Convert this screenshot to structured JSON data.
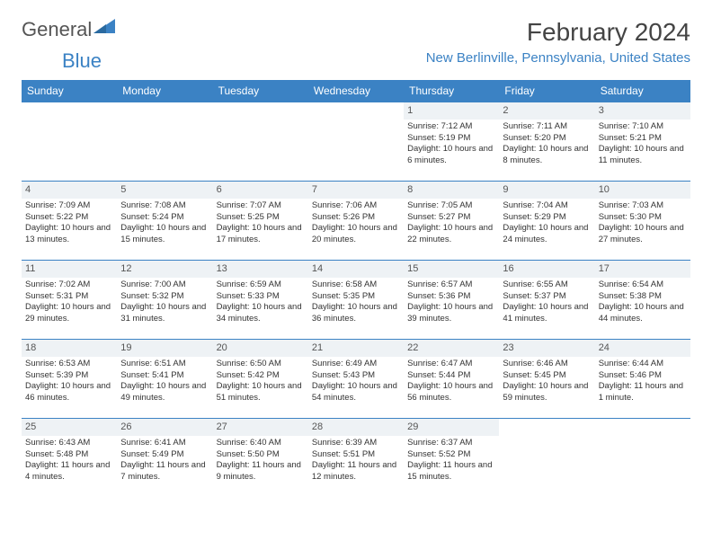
{
  "logo": {
    "text_a": "General",
    "text_b": "Blue"
  },
  "title": "February 2024",
  "location": "New Berlinville, Pennsylvania, United States",
  "colors": {
    "header_bg": "#3b82c4",
    "header_fg": "#ffffff",
    "daynum_bg": "#eef2f5",
    "border": "#3b82c4"
  },
  "weekdays": [
    "Sunday",
    "Monday",
    "Tuesday",
    "Wednesday",
    "Thursday",
    "Friday",
    "Saturday"
  ],
  "weeks": [
    [
      null,
      null,
      null,
      null,
      {
        "n": "1",
        "sr": "7:12 AM",
        "ss": "5:19 PM",
        "dl": "10 hours and 6 minutes."
      },
      {
        "n": "2",
        "sr": "7:11 AM",
        "ss": "5:20 PM",
        "dl": "10 hours and 8 minutes."
      },
      {
        "n": "3",
        "sr": "7:10 AM",
        "ss": "5:21 PM",
        "dl": "10 hours and 11 minutes."
      }
    ],
    [
      {
        "n": "4",
        "sr": "7:09 AM",
        "ss": "5:22 PM",
        "dl": "10 hours and 13 minutes."
      },
      {
        "n": "5",
        "sr": "7:08 AM",
        "ss": "5:24 PM",
        "dl": "10 hours and 15 minutes."
      },
      {
        "n": "6",
        "sr": "7:07 AM",
        "ss": "5:25 PM",
        "dl": "10 hours and 17 minutes."
      },
      {
        "n": "7",
        "sr": "7:06 AM",
        "ss": "5:26 PM",
        "dl": "10 hours and 20 minutes."
      },
      {
        "n": "8",
        "sr": "7:05 AM",
        "ss": "5:27 PM",
        "dl": "10 hours and 22 minutes."
      },
      {
        "n": "9",
        "sr": "7:04 AM",
        "ss": "5:29 PM",
        "dl": "10 hours and 24 minutes."
      },
      {
        "n": "10",
        "sr": "7:03 AM",
        "ss": "5:30 PM",
        "dl": "10 hours and 27 minutes."
      }
    ],
    [
      {
        "n": "11",
        "sr": "7:02 AM",
        "ss": "5:31 PM",
        "dl": "10 hours and 29 minutes."
      },
      {
        "n": "12",
        "sr": "7:00 AM",
        "ss": "5:32 PM",
        "dl": "10 hours and 31 minutes."
      },
      {
        "n": "13",
        "sr": "6:59 AM",
        "ss": "5:33 PM",
        "dl": "10 hours and 34 minutes."
      },
      {
        "n": "14",
        "sr": "6:58 AM",
        "ss": "5:35 PM",
        "dl": "10 hours and 36 minutes."
      },
      {
        "n": "15",
        "sr": "6:57 AM",
        "ss": "5:36 PM",
        "dl": "10 hours and 39 minutes."
      },
      {
        "n": "16",
        "sr": "6:55 AM",
        "ss": "5:37 PM",
        "dl": "10 hours and 41 minutes."
      },
      {
        "n": "17",
        "sr": "6:54 AM",
        "ss": "5:38 PM",
        "dl": "10 hours and 44 minutes."
      }
    ],
    [
      {
        "n": "18",
        "sr": "6:53 AM",
        "ss": "5:39 PM",
        "dl": "10 hours and 46 minutes."
      },
      {
        "n": "19",
        "sr": "6:51 AM",
        "ss": "5:41 PM",
        "dl": "10 hours and 49 minutes."
      },
      {
        "n": "20",
        "sr": "6:50 AM",
        "ss": "5:42 PM",
        "dl": "10 hours and 51 minutes."
      },
      {
        "n": "21",
        "sr": "6:49 AM",
        "ss": "5:43 PM",
        "dl": "10 hours and 54 minutes."
      },
      {
        "n": "22",
        "sr": "6:47 AM",
        "ss": "5:44 PM",
        "dl": "10 hours and 56 minutes."
      },
      {
        "n": "23",
        "sr": "6:46 AM",
        "ss": "5:45 PM",
        "dl": "10 hours and 59 minutes."
      },
      {
        "n": "24",
        "sr": "6:44 AM",
        "ss": "5:46 PM",
        "dl": "11 hours and 1 minute."
      }
    ],
    [
      {
        "n": "25",
        "sr": "6:43 AM",
        "ss": "5:48 PM",
        "dl": "11 hours and 4 minutes."
      },
      {
        "n": "26",
        "sr": "6:41 AM",
        "ss": "5:49 PM",
        "dl": "11 hours and 7 minutes."
      },
      {
        "n": "27",
        "sr": "6:40 AM",
        "ss": "5:50 PM",
        "dl": "11 hours and 9 minutes."
      },
      {
        "n": "28",
        "sr": "6:39 AM",
        "ss": "5:51 PM",
        "dl": "11 hours and 12 minutes."
      },
      {
        "n": "29",
        "sr": "6:37 AM",
        "ss": "5:52 PM",
        "dl": "11 hours and 15 minutes."
      },
      null,
      null
    ]
  ],
  "labels": {
    "sunrise": "Sunrise:",
    "sunset": "Sunset:",
    "daylight": "Daylight:"
  }
}
